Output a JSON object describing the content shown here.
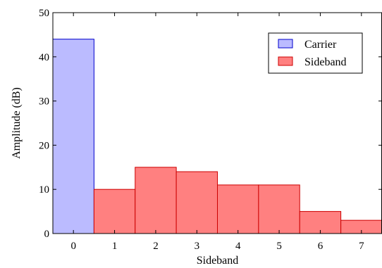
{
  "chart_data": {
    "type": "bar",
    "title": "",
    "xlabel": "Sideband",
    "ylabel": "Amplitude (dB)",
    "categories": [
      "0",
      "1",
      "2",
      "3",
      "4",
      "5",
      "6",
      "7"
    ],
    "xlim": [
      -0.5,
      7.5
    ],
    "ylim": [
      0,
      50
    ],
    "yticks": [
      0,
      10,
      20,
      30,
      40,
      50
    ],
    "xticks": [
      0,
      1,
      2,
      3,
      4,
      5,
      6,
      7
    ],
    "grid": false,
    "legend_position": "top-right",
    "series": [
      {
        "name": "Carrier",
        "color": "#BBBBFF",
        "edge": "#0000CC",
        "bars": [
          {
            "x0": -0.5,
            "x1": 0.5,
            "value": 44
          }
        ]
      },
      {
        "name": "Sideband",
        "color": "#FF8080",
        "edge": "#CC0000",
        "bars": [
          {
            "x0": 0.5,
            "x1": 1.5,
            "value": 10
          },
          {
            "x0": 1.5,
            "x1": 2.5,
            "value": 15
          },
          {
            "x0": 2.5,
            "x1": 3.5,
            "value": 14
          },
          {
            "x0": 3.5,
            "x1": 4.5,
            "value": 11
          },
          {
            "x0": 4.5,
            "x1": 5.5,
            "value": 11
          },
          {
            "x0": 5.5,
            "x1": 6.5,
            "value": 5
          },
          {
            "x0": 6.5,
            "x1": 7.5,
            "value": 3
          }
        ]
      }
    ]
  }
}
